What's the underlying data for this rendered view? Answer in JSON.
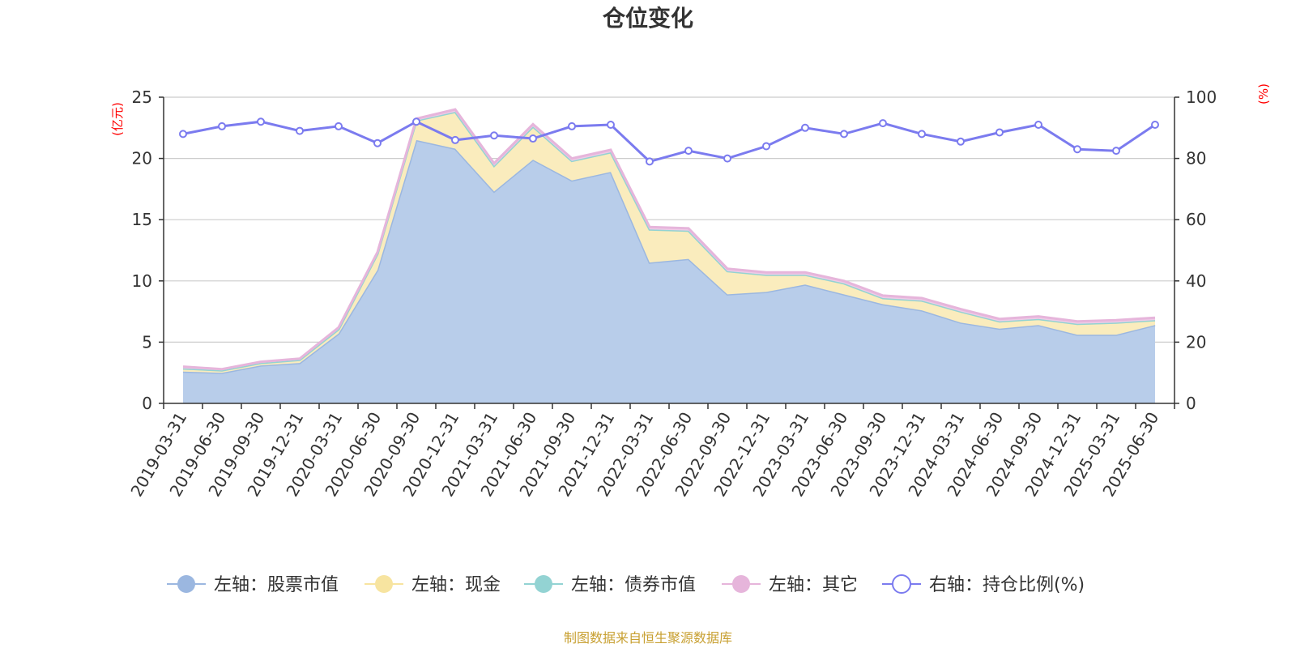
{
  "chart_data": {
    "type": "area",
    "title": "仓位变化",
    "left_axis": {
      "unit": "(亿元)",
      "ylim": [
        0,
        25
      ],
      "ticks": [
        "0",
        "5",
        "10",
        "15",
        "20",
        "25"
      ]
    },
    "right_axis": {
      "unit": "(%)",
      "ylim": [
        0,
        100
      ],
      "ticks": [
        "0",
        "20",
        "40",
        "60",
        "80",
        "100"
      ]
    },
    "categories": [
      "2019-03-31",
      "2019-06-30",
      "2019-09-30",
      "2019-12-31",
      "2020-03-31",
      "2020-06-30",
      "2020-09-30",
      "2020-12-31",
      "2021-03-31",
      "2021-06-30",
      "2021-09-30",
      "2021-12-31",
      "2022-03-31",
      "2022-06-30",
      "2022-09-30",
      "2022-12-31",
      "2023-03-31",
      "2023-06-30",
      "2023-09-30",
      "2023-12-31",
      "2024-03-31",
      "2024-06-30",
      "2024-09-30",
      "2024-12-31",
      "2025-03-31",
      "2025-06-30"
    ],
    "series": [
      {
        "name": "左轴：股票市值",
        "axis": "left",
        "stacked": true,
        "color": "#9bb7e0",
        "fill": "#b8cdea",
        "values": [
          2.6,
          2.5,
          3.1,
          3.3,
          5.7,
          10.9,
          21.5,
          20.8,
          17.3,
          19.9,
          18.2,
          18.9,
          11.5,
          11.8,
          8.9,
          9.1,
          9.7,
          8.9,
          8.1,
          7.6,
          6.6,
          6.1,
          6.4,
          5.6,
          5.6,
          6.4
        ]
      },
      {
        "name": "左轴：现金",
        "axis": "left",
        "stacked": true,
        "color": "#f7e4a0",
        "fill": "#faecbd",
        "values": [
          0.25,
          0.2,
          0.2,
          0.25,
          0.35,
          1.3,
          1.6,
          3.0,
          2.1,
          2.7,
          1.6,
          1.6,
          2.7,
          2.3,
          1.9,
          1.4,
          0.8,
          0.9,
          0.5,
          0.8,
          0.9,
          0.6,
          0.5,
          0.9,
          1.0,
          0.4
        ]
      },
      {
        "name": "左轴：债券市值",
        "axis": "left",
        "stacked": true,
        "color": "#93d3d3",
        "fill": "#b7e2e2",
        "values": [
          0,
          0,
          0,
          0,
          0,
          0,
          0,
          0,
          0,
          0,
          0,
          0,
          0,
          0,
          0,
          0,
          0,
          0,
          0,
          0,
          0,
          0,
          0,
          0,
          0,
          0
        ]
      },
      {
        "name": "左轴：其它",
        "axis": "left",
        "stacked": true,
        "color": "#e6b5db",
        "fill": "#efcbe7",
        "values": [
          0.15,
          0.1,
          0.1,
          0.1,
          0.15,
          0.15,
          0.15,
          0.2,
          0.2,
          0.2,
          0.2,
          0.2,
          0.2,
          0.2,
          0.2,
          0.2,
          0.2,
          0.2,
          0.2,
          0.2,
          0.2,
          0.2,
          0.2,
          0.2,
          0.2,
          0.2
        ]
      },
      {
        "name": "右轴：持仓比例(%)",
        "axis": "right",
        "stacked": false,
        "color": "#7b7bef",
        "values": [
          88,
          90.5,
          92,
          89,
          90.5,
          85,
          92,
          86,
          87.5,
          86.5,
          90.5,
          91,
          79,
          82.5,
          80,
          84,
          90,
          88,
          91.5,
          88,
          85.5,
          88.5,
          91,
          83,
          82.5,
          91
        ]
      }
    ],
    "grid": true,
    "legend_position": "bottom"
  },
  "footer": {
    "source_text": "制图数据来自恒生聚源数据库",
    "color": "#c8a032"
  }
}
